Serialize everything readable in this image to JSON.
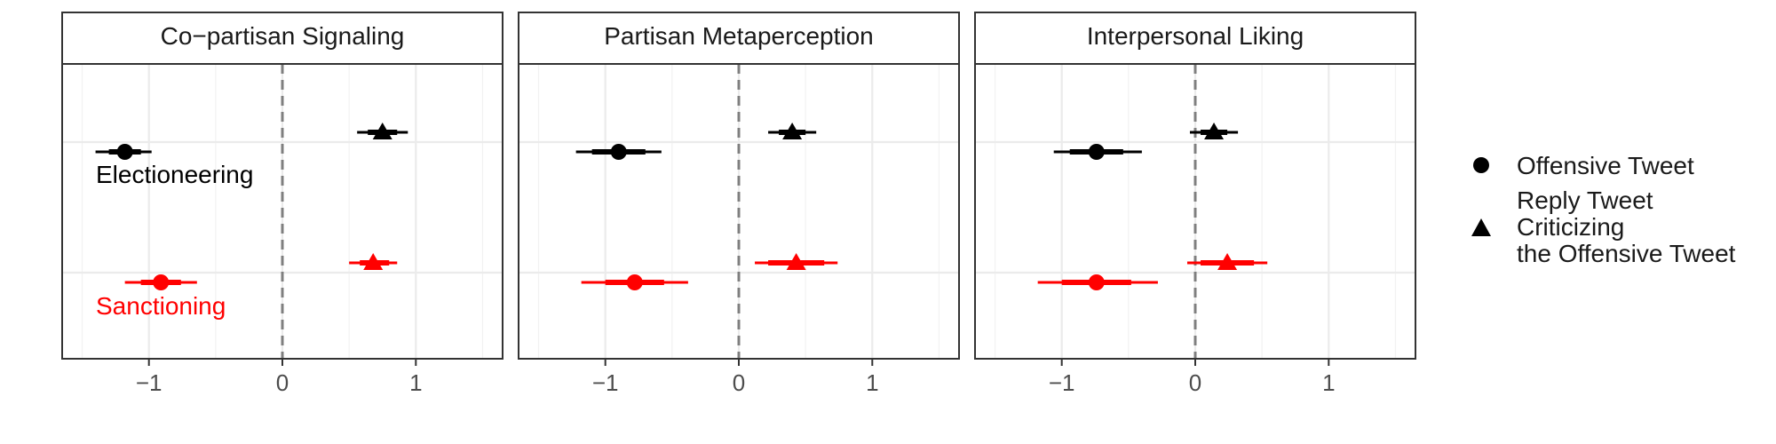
{
  "chart_data": {
    "type": "scatter",
    "subtype": "faceted coefficient plot with confidence intervals",
    "facets": [
      "Co−partisan Signaling",
      "Partisan Metaperception",
      "Interpersonal Liking"
    ],
    "groups": [
      {
        "label": "Electioneering",
        "color": "#000000"
      },
      {
        "label": "Sanctioning",
        "color": "#ff0000"
      }
    ],
    "legend": {
      "placement": "right",
      "entries": [
        {
          "shape": "circle-icon",
          "lines": [
            "Offensive Tweet"
          ]
        },
        {
          "shape": "triangle-icon",
          "lines": [
            "Reply Tweet",
            "Criticizing",
            "the Offensive Tweet"
          ]
        }
      ]
    },
    "xlim": [
      -1.65,
      1.65
    ],
    "x_ticks": [
      -1,
      0,
      1
    ],
    "x_tick_labels": [
      "−1",
      "0",
      "1"
    ],
    "reference_line": 0,
    "grid": true,
    "points": [
      {
        "facet": 0,
        "group": 0,
        "shape": 0,
        "estimate": -1.18,
        "ci90": [
          -1.3,
          -1.06
        ],
        "ci95": [
          -1.4,
          -0.98
        ]
      },
      {
        "facet": 0,
        "group": 0,
        "shape": 1,
        "estimate": 0.75,
        "ci90": [
          0.64,
          0.86
        ],
        "ci95": [
          0.56,
          0.94
        ]
      },
      {
        "facet": 0,
        "group": 1,
        "shape": 0,
        "estimate": -0.91,
        "ci90": [
          -1.06,
          -0.76
        ],
        "ci95": [
          -1.18,
          -0.64
        ]
      },
      {
        "facet": 0,
        "group": 1,
        "shape": 1,
        "estimate": 0.68,
        "ci90": [
          0.58,
          0.8
        ],
        "ci95": [
          0.5,
          0.86
        ]
      },
      {
        "facet": 1,
        "group": 0,
        "shape": 0,
        "estimate": -0.9,
        "ci90": [
          -1.1,
          -0.7
        ],
        "ci95": [
          -1.22,
          -0.58
        ]
      },
      {
        "facet": 1,
        "group": 0,
        "shape": 1,
        "estimate": 0.4,
        "ci90": [
          0.3,
          0.5
        ],
        "ci95": [
          0.22,
          0.58
        ]
      },
      {
        "facet": 1,
        "group": 1,
        "shape": 0,
        "estimate": -0.78,
        "ci90": [
          -1.0,
          -0.56
        ],
        "ci95": [
          -1.18,
          -0.38
        ]
      },
      {
        "facet": 1,
        "group": 1,
        "shape": 1,
        "estimate": 0.43,
        "ci90": [
          0.22,
          0.64
        ],
        "ci95": [
          0.12,
          0.74
        ]
      },
      {
        "facet": 2,
        "group": 0,
        "shape": 0,
        "estimate": -0.74,
        "ci90": [
          -0.94,
          -0.54
        ],
        "ci95": [
          -1.06,
          -0.4
        ]
      },
      {
        "facet": 2,
        "group": 0,
        "shape": 1,
        "estimate": 0.14,
        "ci90": [
          0.04,
          0.24
        ],
        "ci95": [
          -0.04,
          0.32
        ]
      },
      {
        "facet": 2,
        "group": 1,
        "shape": 0,
        "estimate": -0.74,
        "ci90": [
          -1.0,
          -0.48
        ],
        "ci95": [
          -1.18,
          -0.28
        ]
      },
      {
        "facet": 2,
        "group": 1,
        "shape": 1,
        "estimate": 0.24,
        "ci90": [
          0.04,
          0.44
        ],
        "ci95": [
          -0.06,
          0.54
        ]
      }
    ]
  }
}
